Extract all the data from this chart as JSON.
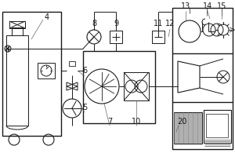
{
  "bg_color": "#ffffff",
  "line_color": "#1a1a1a",
  "gray_fill": "#b0b0b0",
  "light_gray": "#d0d0d0",
  "mid_gray": "#888888"
}
